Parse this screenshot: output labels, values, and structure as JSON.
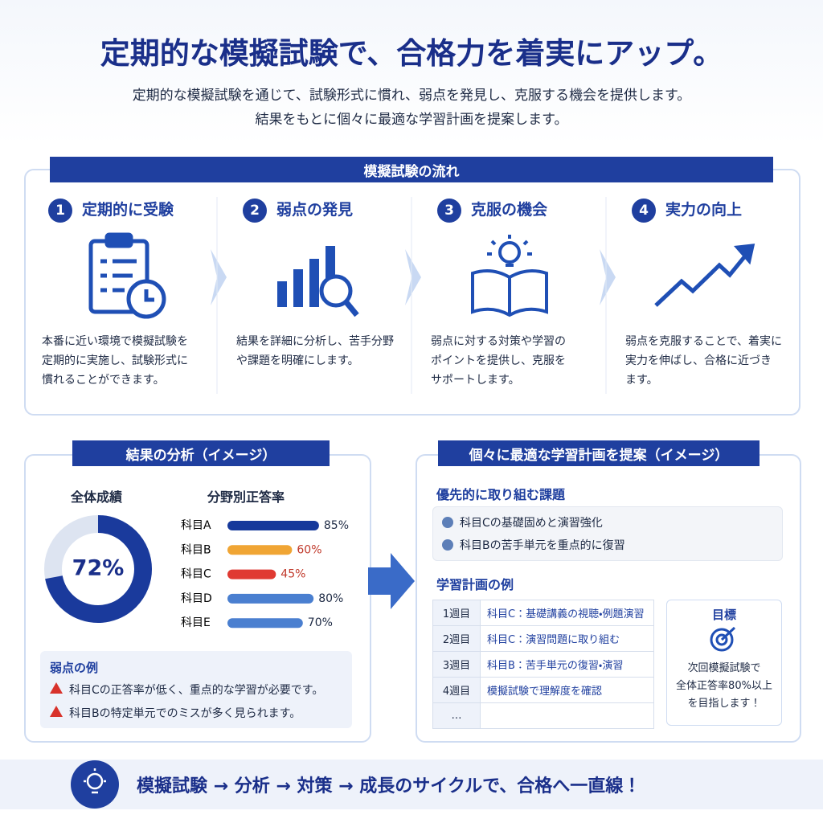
{
  "header": {
    "title": "定期的な模擬試験で、合格力を着実にアップ。",
    "subtitle": [
      "定期的な模擬試験を通じて、試験形式に慣れ、弱点を発見し、克服する機会を提供します。",
      "結果をもとに個々に最適な学習計画を提案します。"
    ]
  },
  "flow": {
    "title": "模擬試験の流れ",
    "steps": [
      {
        "number": "1",
        "title": "定期的に受験",
        "text": [
          "本番に近い環境で模擬試験を",
          "定期的に実施し、試験形式に",
          "慣れることができます。"
        ]
      },
      {
        "number": "2",
        "title": "弱点の発見",
        "text": [
          "結果を詳細に分析し、苦手分野",
          "や課題を明確にします。"
        ]
      },
      {
        "number": "3",
        "title": "克服の機会",
        "text": [
          "弱点に対する対策や学習の",
          "ポイントを提供し、克服を",
          "サポートします。"
        ]
      },
      {
        "number": "4",
        "title": "実力の向上",
        "text": [
          "弱点を克服することで、着実に",
          "実力を伸ばし、合格に近づき",
          "ます。"
        ]
      }
    ]
  },
  "analysis": {
    "title": "結果の分析（イメージ）",
    "overall_title": "全体成績",
    "overall": {
      "value": 72,
      "label": "72%"
    },
    "subjects_title": "分野別正答率",
    "subjects": [
      {
        "name": "科目A",
        "value": 85,
        "label": "85%",
        "color": "#16399b",
        "label_color": "#1e2a44"
      },
      {
        "name": "科目B",
        "value": 60,
        "label": "60%",
        "color": "#f0a534",
        "label_color": "#c0392b"
      },
      {
        "name": "科目C",
        "value": 45,
        "label": "45%",
        "color": "#e03a32",
        "label_color": "#c0392b"
      },
      {
        "name": "科目D",
        "value": 80,
        "label": "80%",
        "color": "#4a7fd0",
        "label_color": "#1e2a44"
      },
      {
        "name": "科目E",
        "value": 70,
        "label": "70%",
        "color": "#4a7fd0",
        "label_color": "#1e2a44"
      }
    ],
    "weak_title": "弱点の例",
    "weak_items": [
      "科目Cの正答率が低く、重点的な学習が必要です。",
      "科目Bの特定単元でのミスが多く見られます。"
    ]
  },
  "plan": {
    "title": "個々に最適な学習計画を提案（イメージ）",
    "priority_title": "優先的に取り組む課題",
    "priority_items": [
      "科目Cの基礎固めと演習強化",
      "科目Bの苦手単元を重点的に復習"
    ],
    "example_title": "学習計画の例",
    "rows": [
      [
        "1週目",
        "科目C：基礎講義の視聴・例題演習"
      ],
      [
        "2週目",
        "科目C：演習問題に取り組む"
      ],
      [
        "3週目",
        "科目B：苦手単元の復習・演習"
      ],
      [
        "4週目",
        "模擬試験で理解度を確認"
      ],
      [
        "…"
      ]
    ],
    "goal_title": "目標",
    "goal_text": [
      "次回模擬試験で",
      "全体正答率80%以上",
      "を目指します！"
    ]
  },
  "footer": {
    "text": "模擬試験 → 分析 → 対策 → 成長のサイクルで、合格へ一直線！"
  }
}
